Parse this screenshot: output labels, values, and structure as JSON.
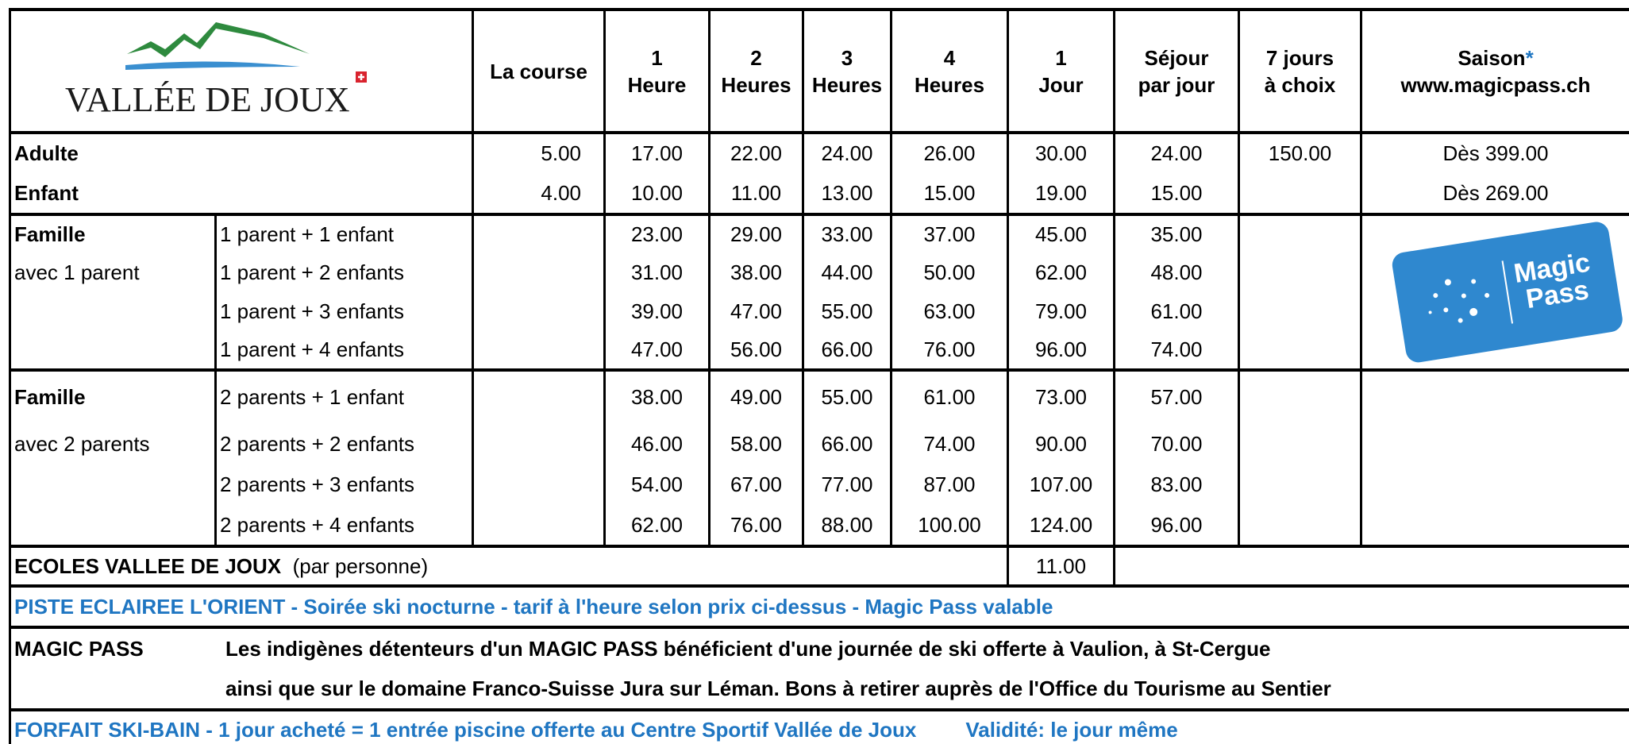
{
  "logo": {
    "name": "VALLÉE DE JOUX"
  },
  "header": {
    "columns": [
      {
        "top": "La course"
      },
      {
        "top": "1",
        "bottom": "Heure"
      },
      {
        "top": "2",
        "bottom": "Heures"
      },
      {
        "top": "3",
        "bottom": "Heures"
      },
      {
        "top": "4",
        "bottom": "Heures"
      },
      {
        "top": "1",
        "bottom": "Jour"
      },
      {
        "top": "Séjour",
        "bottom": "par jour"
      },
      {
        "top": "7 jours",
        "bottom": "à choix"
      },
      {
        "top": "Saison",
        "mark": "*",
        "bottom": "www.magicpass.ch"
      }
    ]
  },
  "single_rows": [
    {
      "label": "Adulte",
      "prices": [
        "5.00",
        "17.00",
        "22.00",
        "24.00",
        "26.00",
        "30.00",
        "24.00",
        "150.00",
        "Dès 399.00"
      ]
    },
    {
      "label": "Enfant",
      "prices": [
        "4.00",
        "10.00",
        "11.00",
        "13.00",
        "15.00",
        "19.00",
        "15.00",
        null,
        "Dès 269.00"
      ]
    }
  ],
  "family_groups": [
    {
      "title": "Famille",
      "subtitle": "avec 1 parent",
      "rows": [
        {
          "label": "1 parent + 1 enfant",
          "prices": [
            "23.00",
            "29.00",
            "33.00",
            "37.00",
            "45.00",
            "35.00"
          ]
        },
        {
          "label": "1 parent + 2 enfants",
          "prices": [
            "31.00",
            "38.00",
            "44.00",
            "50.00",
            "62.00",
            "48.00"
          ]
        },
        {
          "label": "1 parent + 3 enfants",
          "prices": [
            "39.00",
            "47.00",
            "55.00",
            "63.00",
            "79.00",
            "61.00"
          ]
        },
        {
          "label": "1 parent + 4 enfants",
          "prices": [
            "47.00",
            "56.00",
            "66.00",
            "76.00",
            "96.00",
            "74.00"
          ]
        }
      ]
    },
    {
      "title": "Famille",
      "subtitle": "avec 2 parents",
      "rows": [
        {
          "label": "2 parents + 1 enfant",
          "prices": [
            "38.00",
            "49.00",
            "55.00",
            "61.00",
            "73.00",
            "57.00"
          ]
        },
        {
          "label": "2 parents + 2 enfants",
          "prices": [
            "46.00",
            "58.00",
            "66.00",
            "74.00",
            "90.00",
            "70.00"
          ]
        },
        {
          "label": "2 parents + 3 enfants",
          "prices": [
            "54.00",
            "67.00",
            "77.00",
            "87.00",
            "107.00",
            "83.00"
          ]
        },
        {
          "label": "2 parents + 4 enfants",
          "prices": [
            "62.00",
            "76.00",
            "88.00",
            "100.00",
            "124.00",
            "96.00"
          ]
        }
      ]
    }
  ],
  "magic_card": [
    "Magic",
    "Pass"
  ],
  "schools": {
    "label": "ECOLES VALLEE DE JOUX",
    "note": "(par personne)",
    "price": "11.00"
  },
  "night_ski": "PISTE ECLAIREE L'ORIENT - Soirée ski nocturne - tarif à l'heure selon prix ci-dessus - Magic Pass valable",
  "magic_pass": {
    "label": "MAGIC PASS",
    "lines": [
      "Les indigènes détenteurs d'un MAGIC PASS bénéficient d'une journée de ski offerte à Vaulion, à St-Cergue",
      "ainsi que sur le domaine Franco-Suisse Jura sur Léman. Bons à retirer auprès de l'Office du Tourisme au Sentier"
    ]
  },
  "ski_bath": {
    "text": "FORFAIT SKI-BAIN - 1 jour acheté = 1 entrée piscine offerte au Centre Sportif Vallée de Joux",
    "validity": "Validité: le jour même"
  }
}
